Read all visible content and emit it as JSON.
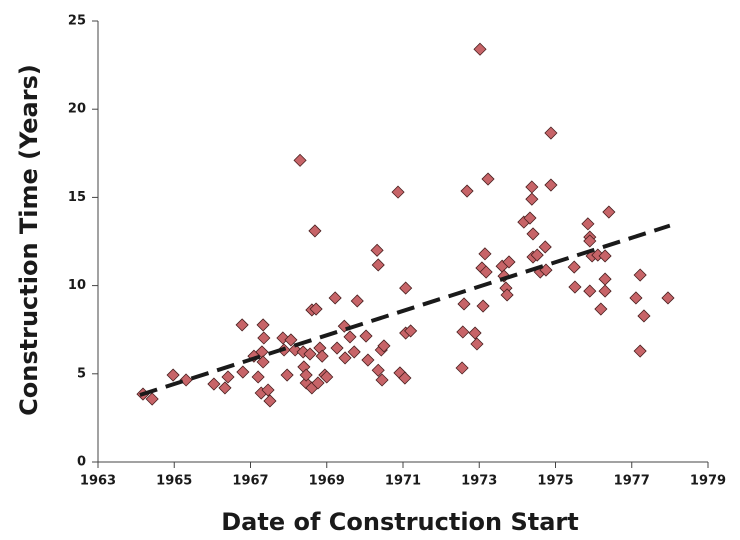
{
  "chart_data": {
    "type": "scatter",
    "xlabel": "Date of Construction Start",
    "ylabel": "Construction Time (Years)",
    "x": [
      1964.18,
      1964.42,
      1964.97,
      1965.31,
      1966.04,
      1966.33,
      1966.41,
      1966.78,
      1966.8,
      1967.09,
      1967.2,
      1967.3,
      1967.33,
      1967.35,
      1967.33,
      1967.28,
      1967.51,
      1967.46,
      1967.85,
      1967.88,
      1967.96,
      1968.06,
      1968.17,
      1968.3,
      1968.38,
      1968.4,
      1968.46,
      1968.46,
      1968.56,
      1968.61,
      1968.69,
      1968.72,
      1968.61,
      1968.77,
      1968.82,
      1968.88,
      1968.95,
      1969.0,
      1969.22,
      1969.27,
      1969.46,
      1969.48,
      1969.61,
      1969.72,
      1969.8,
      1970.03,
      1970.08,
      1970.32,
      1970.35,
      1970.35,
      1970.43,
      1970.45,
      1970.5,
      1970.87,
      1970.92,
      1971.05,
      1971.07,
      1971.07,
      1971.2,
      1972.55,
      1972.57,
      1972.6,
      1972.68,
      1972.89,
      1972.94,
      1973.02,
      1973.07,
      1973.1,
      1973.15,
      1973.18,
      1973.23,
      1973.6,
      1973.65,
      1973.7,
      1973.73,
      1973.78,
      1974.17,
      1974.33,
      1974.38,
      1974.38,
      1974.41,
      1974.41,
      1974.52,
      1974.6,
      1974.73,
      1974.75,
      1974.88,
      1974.88,
      1975.49,
      1975.51,
      1975.85,
      1975.9,
      1975.9,
      1975.9,
      1975.96,
      1976.11,
      1976.19,
      1976.3,
      1976.3,
      1976.4,
      1976.3,
      1977.11,
      1977.22,
      1977.22,
      1977.32,
      1977.95
    ],
    "values": [
      3.85,
      3.57,
      4.93,
      4.65,
      4.42,
      4.2,
      4.82,
      7.77,
      5.1,
      6.0,
      4.82,
      6.24,
      7.77,
      7.03,
      5.67,
      3.91,
      3.46,
      4.08,
      7.03,
      6.35,
      4.93,
      6.92,
      6.35,
      17.1,
      6.24,
      5.39,
      4.48,
      4.93,
      6.12,
      8.62,
      13.1,
      8.67,
      4.2,
      4.48,
      6.46,
      6.0,
      4.93,
      4.82,
      9.3,
      6.46,
      7.7,
      5.9,
      7.09,
      6.24,
      9.13,
      7.14,
      5.78,
      12.0,
      11.17,
      5.2,
      6.35,
      4.65,
      6.58,
      15.3,
      5.05,
      4.76,
      9.86,
      7.31,
      7.43,
      5.33,
      7.37,
      8.96,
      15.36,
      7.31,
      6.69,
      23.4,
      11.0,
      8.84,
      11.8,
      10.77,
      16.04,
      11.1,
      10.54,
      9.86,
      9.47,
      11.34,
      13.6,
      13.83,
      15.59,
      14.9,
      12.93,
      11.62,
      11.73,
      10.77,
      12.19,
      10.88,
      18.65,
      15.7,
      11.05,
      9.92,
      13.5,
      12.75,
      12.53,
      9.69,
      11.68,
      11.73,
      8.67,
      10.37,
      9.69,
      14.17,
      11.68,
      9.3,
      10.6,
      6.29,
      8.28,
      9.3
    ],
    "color": "#c76468",
    "trendline": {
      "x": [
        1964.1,
        1978.0
      ],
      "values": [
        3.8,
        13.4
      ],
      "color": "#1a1a1a"
    },
    "xlim": [
      1963,
      1979
    ],
    "xticks": [
      1963,
      1965,
      1967,
      1969,
      1971,
      1973,
      1975,
      1977,
      1979
    ],
    "ylim": [
      0,
      25
    ],
    "yticks": [
      0,
      5,
      10,
      15,
      20,
      25
    ],
    "grid": false
  }
}
